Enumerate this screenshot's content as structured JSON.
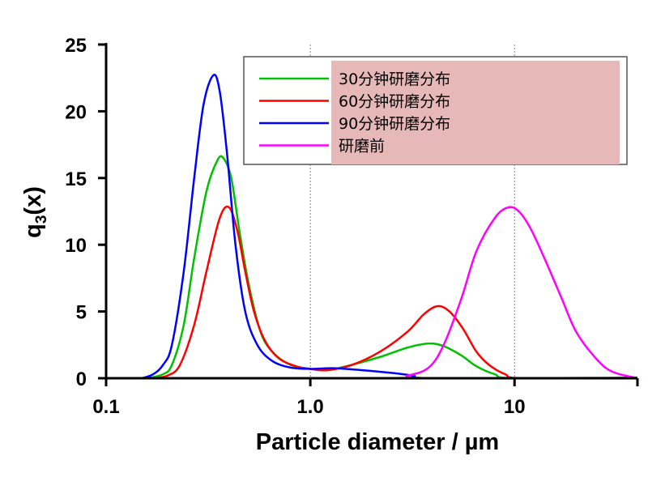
{
  "chart_data": {
    "type": "line",
    "title": "",
    "xlabel": "Particle diameter / µm",
    "ylabel_main": "q",
    "ylabel_sub": "3",
    "ylabel_tail": "(x)",
    "xscale": "log",
    "xlim": [
      0.1,
      40
    ],
    "ylim": [
      0,
      25
    ],
    "xticks": [
      {
        "v": 0.1,
        "label": "0.1"
      },
      {
        "v": 1,
        "label": "1.0"
      },
      {
        "v": 10,
        "label": "10"
      }
    ],
    "yticks": [
      {
        "v": 0,
        "label": "0"
      },
      {
        "v": 5,
        "label": "5"
      },
      {
        "v": 10,
        "label": "10"
      },
      {
        "v": 15,
        "label": "15"
      },
      {
        "v": 20,
        "label": "20"
      },
      {
        "v": 25,
        "label": "25"
      }
    ],
    "grid": "vertical dotted at 1.0 and 10",
    "legend_placement": "top-right",
    "legend_background": "#e6b8b7",
    "series": [
      {
        "name": "30分钟研磨分布",
        "color": "#00c000",
        "points": [
          [
            0.16,
            0
          ],
          [
            0.19,
            0.3
          ],
          [
            0.21,
            1
          ],
          [
            0.24,
            4
          ],
          [
            0.27,
            9
          ],
          [
            0.31,
            14
          ],
          [
            0.35,
            16.3
          ],
          [
            0.375,
            16.5
          ],
          [
            0.41,
            15
          ],
          [
            0.45,
            11
          ],
          [
            0.5,
            7
          ],
          [
            0.57,
            3.5
          ],
          [
            0.65,
            2
          ],
          [
            0.8,
            1
          ],
          [
            1.0,
            0.7
          ],
          [
            1.2,
            0.6
          ],
          [
            1.5,
            0.9
          ],
          [
            2.2,
            1.6
          ],
          [
            3,
            2.3
          ],
          [
            3.8,
            2.6
          ],
          [
            4.5,
            2.4
          ],
          [
            5.5,
            1.7
          ],
          [
            6.5,
            0.9
          ],
          [
            8,
            0.3
          ],
          [
            10,
            0
          ],
          [
            40,
            0.05
          ]
        ]
      },
      {
        "name": "60分钟研磨分布",
        "color": "#ff0000",
        "points": [
          [
            0.17,
            0
          ],
          [
            0.2,
            0.2
          ],
          [
            0.23,
            1
          ],
          [
            0.27,
            4
          ],
          [
            0.31,
            8
          ],
          [
            0.36,
            12
          ],
          [
            0.4,
            12.8
          ],
          [
            0.44,
            11
          ],
          [
            0.48,
            8
          ],
          [
            0.53,
            5
          ],
          [
            0.6,
            2.8
          ],
          [
            0.7,
            1.5
          ],
          [
            0.85,
            0.9
          ],
          [
            1.0,
            0.7
          ],
          [
            1.2,
            0.6
          ],
          [
            1.6,
            1.0
          ],
          [
            2.2,
            2.0
          ],
          [
            3,
            3.5
          ],
          [
            3.6,
            4.8
          ],
          [
            4.2,
            5.4
          ],
          [
            4.8,
            5
          ],
          [
            5.6,
            3.7
          ],
          [
            6.5,
            2
          ],
          [
            7.5,
            1
          ],
          [
            9,
            0.3
          ],
          [
            11,
            0
          ],
          [
            40,
            0
          ]
        ]
      },
      {
        "name": "90分钟研磨分布",
        "color": "#0000ff",
        "points": [
          [
            0.15,
            0
          ],
          [
            0.17,
            0.3
          ],
          [
            0.19,
            1
          ],
          [
            0.21,
            2.5
          ],
          [
            0.24,
            8
          ],
          [
            0.27,
            15
          ],
          [
            0.3,
            20.5
          ],
          [
            0.335,
            22.7
          ],
          [
            0.36,
            21.5
          ],
          [
            0.39,
            17
          ],
          [
            0.43,
            10
          ],
          [
            0.48,
            5
          ],
          [
            0.55,
            2.5
          ],
          [
            0.65,
            1.3
          ],
          [
            0.8,
            0.8
          ],
          [
            1.0,
            0.7
          ],
          [
            1.3,
            0.75
          ],
          [
            1.8,
            0.6
          ],
          [
            2.5,
            0.4
          ],
          [
            3.2,
            0.2
          ],
          [
            4,
            0
          ],
          [
            40,
            0
          ]
        ]
      },
      {
        "name": "研磨前",
        "color": "#ff00ff",
        "points": [
          [
            0.15,
            0
          ],
          [
            2.3,
            0
          ],
          [
            3,
            0.2
          ],
          [
            3.8,
            0.8
          ],
          [
            4.5,
            2.5
          ],
          [
            5.5,
            6
          ],
          [
            6.5,
            9.5
          ],
          [
            8,
            12
          ],
          [
            9.3,
            12.8
          ],
          [
            10.5,
            12.5
          ],
          [
            12,
            11.2
          ],
          [
            14,
            9
          ],
          [
            17,
            6
          ],
          [
            20,
            3.5
          ],
          [
            25,
            1.5
          ],
          [
            30,
            0.5
          ],
          [
            40,
            0
          ]
        ]
      }
    ]
  }
}
